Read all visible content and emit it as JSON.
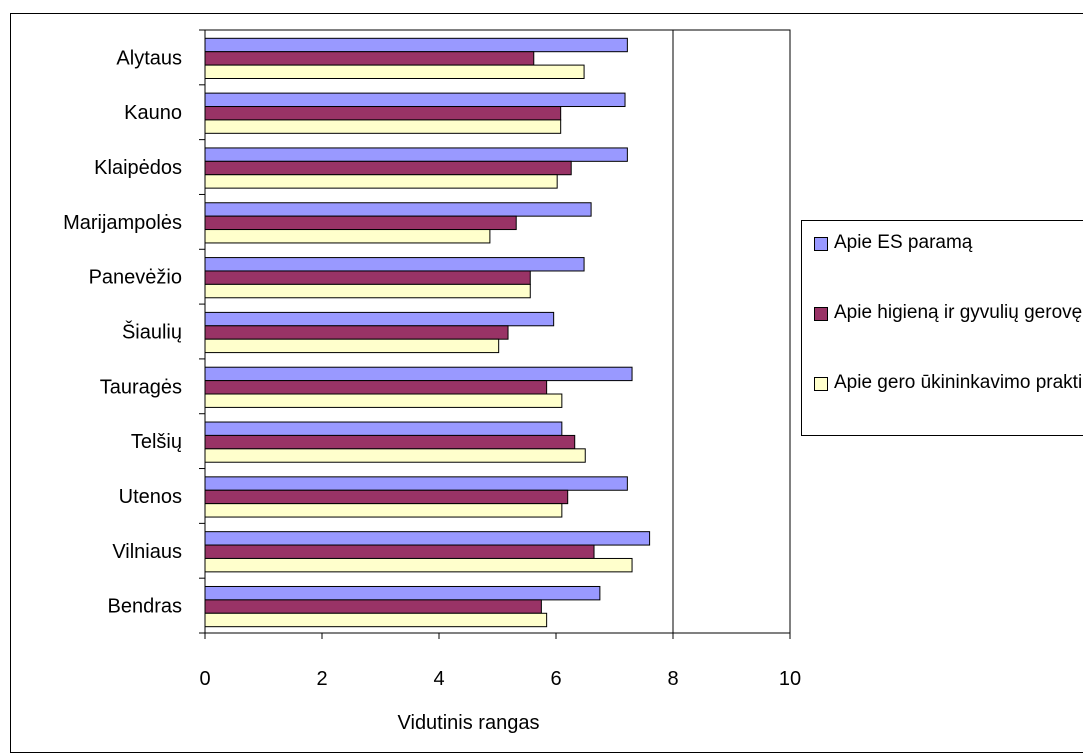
{
  "chart_data": {
    "type": "bar",
    "orientation": "horizontal",
    "categories": [
      "Alytaus",
      "Kauno",
      "Klaipėdos",
      "Marijampolės",
      "Panevėžio",
      "Šiaulių",
      "Tauragės",
      "Telšių",
      "Utenos",
      "Vilniaus",
      "Bendras"
    ],
    "series": [
      {
        "name": "Apie ES paramą",
        "color": "#9999ff",
        "values": [
          7.22,
          7.18,
          7.22,
          6.6,
          6.48,
          5.96,
          7.3,
          6.1,
          7.22,
          7.6,
          6.75
        ]
      },
      {
        "name": "Apie higieną ir gyvulių gerovę",
        "color": "#993366",
        "values": [
          5.62,
          6.08,
          6.26,
          5.32,
          5.56,
          5.18,
          5.84,
          6.32,
          6.2,
          6.65,
          5.75
        ]
      },
      {
        "name": "Apie gero ūkininkavimo praktiką",
        "color": "#ffffcc",
        "values": [
          6.48,
          6.08,
          6.02,
          4.87,
          5.56,
          5.02,
          6.1,
          6.5,
          6.1,
          7.3,
          5.84
        ]
      }
    ],
    "xlabel": "Vidutinis rangas",
    "ylabel": "",
    "xlim": [
      0,
      10
    ],
    "xticks": [
      "0",
      "2",
      "4",
      "6",
      "8",
      "10"
    ],
    "grid": "vertical gridline at 8",
    "legend_position": "right"
  }
}
